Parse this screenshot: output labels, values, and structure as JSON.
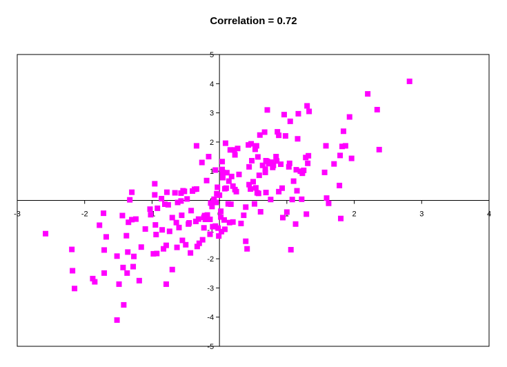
{
  "chart_data": {
    "type": "scatter",
    "title": "Correlation = 0.72",
    "xlabel": "",
    "ylabel": "",
    "xlim": [
      -3,
      4
    ],
    "ylim": [
      -5,
      5
    ],
    "x_ticks": [
      "-3",
      "-2",
      "-1",
      "0",
      "1",
      "2",
      "3",
      "4"
    ],
    "y_ticks": [
      "-5",
      "-4",
      "-3",
      "-2",
      "-1",
      "0",
      "1",
      "2",
      "3",
      "4",
      "5"
    ],
    "grid": false,
    "legend": "none",
    "marker_color": "#ff00ff",
    "series": [
      {
        "points": [
          [
            -2.58,
            -1.14
          ],
          [
            -2.19,
            -1.68
          ],
          [
            -2.18,
            -2.41
          ],
          [
            -2.15,
            -3.02
          ],
          [
            -1.88,
            -2.68
          ],
          [
            -1.85,
            -2.79
          ],
          [
            -1.78,
            -0.85
          ],
          [
            -1.72,
            -0.44
          ],
          [
            -1.71,
            -1.7
          ],
          [
            -1.71,
            -2.49
          ],
          [
            -1.68,
            -1.25
          ],
          [
            -1.52,
            -1.91
          ],
          [
            -1.52,
            -4.1
          ],
          [
            -1.49,
            -2.87
          ],
          [
            -1.44,
            -0.52
          ],
          [
            -1.43,
            -2.3
          ],
          [
            -1.42,
            -3.58
          ],
          [
            -1.38,
            -1.21
          ],
          [
            -1.37,
            -2.49
          ],
          [
            -1.36,
            -1.77
          ],
          [
            -1.35,
            -0.75
          ],
          [
            -1.33,
            0.02
          ],
          [
            -1.3,
            0.28
          ],
          [
            -1.3,
            -0.66
          ],
          [
            -1.28,
            -2.27
          ],
          [
            -1.27,
            -1.92
          ],
          [
            -1.24,
            -0.64
          ],
          [
            -1.19,
            -2.75
          ],
          [
            -1.16,
            -1.6
          ],
          [
            -1.1,
            -0.98
          ],
          [
            -1.03,
            -0.3
          ],
          [
            -1.02,
            -0.49
          ],
          [
            -0.98,
            -1.83
          ],
          [
            -0.96,
            0.57
          ],
          [
            -0.96,
            0.19
          ],
          [
            -0.95,
            -0.84
          ],
          [
            -0.94,
            -1.17
          ],
          [
            -0.93,
            -1.82
          ],
          [
            -0.92,
            -0.27
          ],
          [
            -0.86,
            0.06
          ],
          [
            -0.85,
            -1.01
          ],
          [
            -0.83,
            -1.66
          ],
          [
            -0.81,
            -0.13
          ],
          [
            -0.79,
            -1.54
          ],
          [
            -0.79,
            -2.87
          ],
          [
            -0.78,
            0.28
          ],
          [
            -0.76,
            -0.15
          ],
          [
            -0.74,
            -1.06
          ],
          [
            -0.7,
            -0.59
          ],
          [
            -0.7,
            -2.37
          ],
          [
            -0.66,
            0.26
          ],
          [
            -0.64,
            -0.76
          ],
          [
            -0.63,
            -1.61
          ],
          [
            -0.62,
            -0.07
          ],
          [
            -0.6,
            -0.93
          ],
          [
            -0.57,
            0.25
          ],
          [
            -0.57,
            -0.02
          ],
          [
            -0.56,
            -0.51
          ],
          [
            -0.55,
            -1.37
          ],
          [
            -0.54,
            0.33
          ],
          [
            -0.52,
            0.31
          ],
          [
            -0.5,
            -1.52
          ],
          [
            -0.48,
            0.05
          ],
          [
            -0.46,
            -0.81
          ],
          [
            -0.45,
            -0.77
          ],
          [
            -0.43,
            -1.8
          ],
          [
            -0.42,
            -0.35
          ],
          [
            -0.4,
            0.32
          ],
          [
            -0.37,
            0.38
          ],
          [
            -0.35,
            -0.72
          ],
          [
            -0.34,
            1.87
          ],
          [
            -0.34,
            0.39
          ],
          [
            -0.33,
            -1.58
          ],
          [
            -0.31,
            -0.64
          ],
          [
            -0.3,
            -1.47
          ],
          [
            -0.26,
            1.3
          ],
          [
            -0.25,
            -1.35
          ],
          [
            -0.23,
            -0.58
          ],
          [
            -0.23,
            -0.94
          ],
          [
            -0.22,
            -0.52
          ],
          [
            -0.21,
            -0.65
          ],
          [
            -0.19,
            0.68
          ],
          [
            -0.18,
            -0.5
          ],
          [
            -0.16,
            1.5
          ],
          [
            -0.14,
            -1.16
          ],
          [
            -0.14,
            -0.65
          ],
          [
            -0.13,
            -0.09
          ],
          [
            -0.11,
            -0.21
          ],
          [
            -0.1,
            -0.9
          ],
          [
            -0.09,
            -0.06
          ],
          [
            -0.08,
            0.04
          ],
          [
            -0.06,
            1.04
          ],
          [
            -0.06,
            -0.88
          ],
          [
            -0.05,
            -0.07
          ],
          [
            -0.04,
            0.23
          ],
          [
            -0.03,
            0.45
          ],
          [
            -0.02,
            -0.95
          ],
          [
            -0.01,
            -1.22
          ],
          [
            0.0,
            0.18
          ],
          [
            0.02,
            -0.37
          ],
          [
            0.02,
            -0.57
          ],
          [
            0.03,
            -1.07
          ],
          [
            0.04,
            1.33
          ],
          [
            0.04,
            1.06
          ],
          [
            0.05,
            0.78
          ],
          [
            0.05,
            0.96
          ],
          [
            0.07,
            -0.67
          ],
          [
            0.08,
            0.4
          ],
          [
            0.08,
            -0.99
          ],
          [
            0.09,
            1.96
          ],
          [
            0.1,
            0.42
          ],
          [
            0.11,
            0.95
          ],
          [
            0.13,
            -0.12
          ],
          [
            0.14,
            0.66
          ],
          [
            0.15,
            -0.76
          ],
          [
            0.16,
            1.73
          ],
          [
            0.17,
            -0.13
          ],
          [
            0.18,
            0.82
          ],
          [
            0.2,
            -0.74
          ],
          [
            0.2,
            0.49
          ],
          [
            0.22,
            1.73
          ],
          [
            0.23,
            1.56
          ],
          [
            0.23,
            0.37
          ],
          [
            0.25,
            0.3
          ],
          [
            0.27,
            1.78
          ],
          [
            0.29,
            0.89
          ],
          [
            0.32,
            -0.79
          ],
          [
            0.36,
            -0.51
          ],
          [
            0.39,
            -1.4
          ],
          [
            0.39,
            -0.23
          ],
          [
            0.41,
            -1.66
          ],
          [
            0.43,
            1.9
          ],
          [
            0.44,
            1.15
          ],
          [
            0.44,
            0.54
          ],
          [
            0.46,
            0.39
          ],
          [
            0.47,
            1.94
          ],
          [
            0.48,
            1.36
          ],
          [
            0.5,
            0.64
          ],
          [
            0.52,
            -0.12
          ],
          [
            0.53,
            1.75
          ],
          [
            0.54,
            0.43
          ],
          [
            0.55,
            1.87
          ],
          [
            0.56,
            0.26
          ],
          [
            0.57,
            1.49
          ],
          [
            0.58,
            0.24
          ],
          [
            0.59,
            0.86
          ],
          [
            0.6,
            2.24
          ],
          [
            0.61,
            -0.39
          ],
          [
            0.64,
            1.2
          ],
          [
            0.67,
            2.34
          ],
          [
            0.68,
            1.07
          ],
          [
            0.68,
            0.96
          ],
          [
            0.69,
            0.27
          ],
          [
            0.69,
            1.36
          ],
          [
            0.71,
            3.1
          ],
          [
            0.71,
            1.34
          ],
          [
            0.73,
            1.26
          ],
          [
            0.76,
            0.03
          ],
          [
            0.77,
            1.31
          ],
          [
            0.79,
            1.13
          ],
          [
            0.8,
            1.2
          ],
          [
            0.84,
            1.5
          ],
          [
            0.85,
            1.35
          ],
          [
            0.86,
            2.35
          ],
          [
            0.88,
            2.23
          ],
          [
            0.88,
            0.3
          ],
          [
            0.91,
            1.24
          ],
          [
            0.93,
            0.42
          ],
          [
            0.94,
            -0.59
          ],
          [
            0.96,
            2.94
          ],
          [
            0.98,
            2.21
          ],
          [
            1.0,
            -0.4
          ],
          [
            1.03,
            1.15
          ],
          [
            1.04,
            1.27
          ],
          [
            1.05,
            2.71
          ],
          [
            1.06,
            -1.69
          ],
          [
            1.08,
            0.03
          ],
          [
            1.1,
            0.66
          ],
          [
            1.13,
            -0.81
          ],
          [
            1.14,
            1.05
          ],
          [
            1.15,
            0.33
          ],
          [
            1.16,
            2.11
          ],
          [
            1.17,
            2.97
          ],
          [
            1.2,
            1.0
          ],
          [
            1.22,
            0.04
          ],
          [
            1.23,
            0.93
          ],
          [
            1.25,
            1.03
          ],
          [
            1.28,
            1.47
          ],
          [
            1.29,
            -0.47
          ],
          [
            1.3,
            3.24
          ],
          [
            1.31,
            1.27
          ],
          [
            1.32,
            1.53
          ],
          [
            1.33,
            3.05
          ],
          [
            1.56,
            0.96
          ],
          [
            1.58,
            1.87
          ],
          [
            1.59,
            0.08
          ],
          [
            1.62,
            -0.1
          ],
          [
            1.7,
            1.25
          ],
          [
            1.78,
            0.51
          ],
          [
            1.79,
            1.54
          ],
          [
            1.8,
            -0.62
          ],
          [
            1.82,
            1.85
          ],
          [
            1.84,
            2.37
          ],
          [
            1.87,
            1.87
          ],
          [
            1.93,
            2.86
          ],
          [
            1.96,
            1.44
          ],
          [
            2.2,
            3.65
          ],
          [
            2.34,
            3.11
          ],
          [
            2.37,
            1.74
          ],
          [
            2.82,
            4.08
          ]
        ]
      }
    ]
  }
}
